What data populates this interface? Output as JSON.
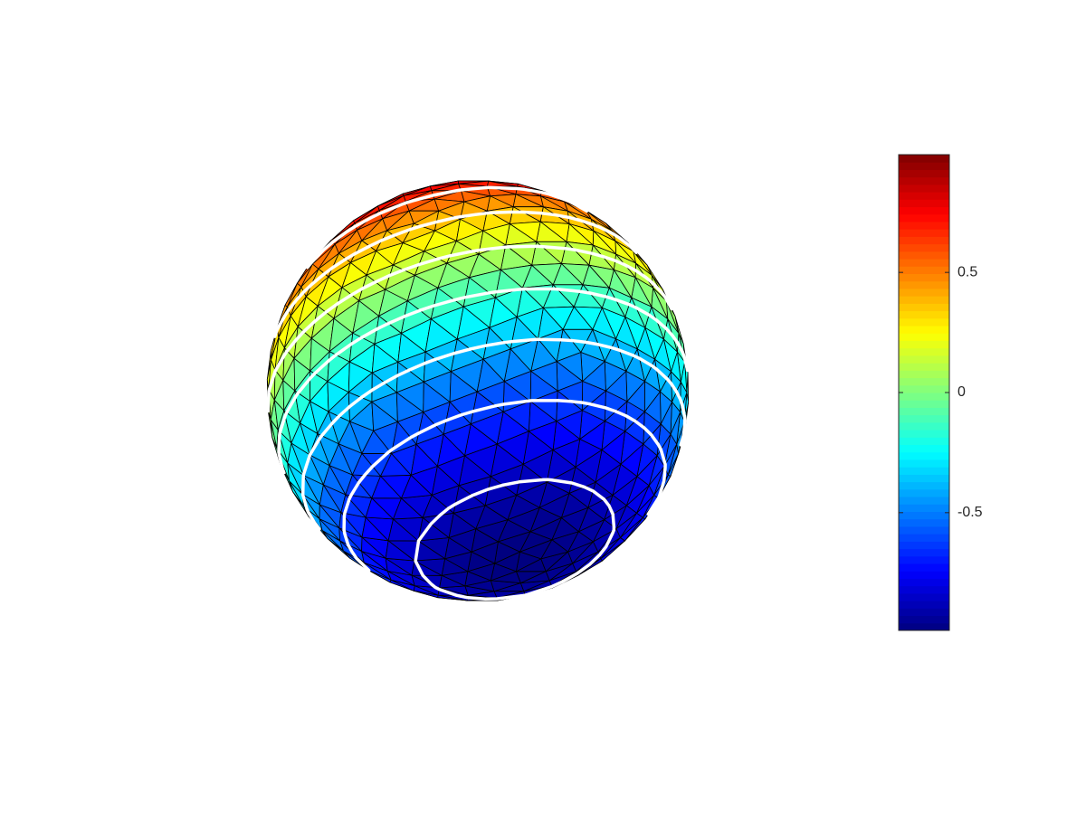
{
  "chart_data": {
    "type": "surface",
    "shape": "sphere",
    "colormap": "jet",
    "clim": [
      -0.99,
      0.99
    ],
    "cticks": [
      -0.5,
      0,
      0.5
    ],
    "contour_levels": [
      -0.875,
      -0.625,
      -0.375,
      -0.125,
      0.125,
      0.375,
      0.625,
      0.875
    ],
    "contour_color": "#ffffff",
    "edge_color": "#000000"
  }
}
